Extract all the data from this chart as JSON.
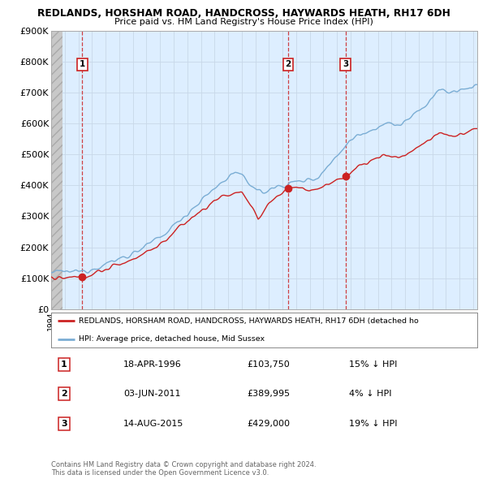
{
  "title": "REDLANDS, HORSHAM ROAD, HANDCROSS, HAYWARDS HEATH, RH17 6DH",
  "subtitle": "Price paid vs. HM Land Registry's House Price Index (HPI)",
  "ylim": [
    0,
    900000
  ],
  "yticks": [
    0,
    100000,
    200000,
    300000,
    400000,
    500000,
    600000,
    700000,
    800000,
    900000
  ],
  "ytick_labels": [
    "£0",
    "£100K",
    "£200K",
    "£300K",
    "£400K",
    "£500K",
    "£600K",
    "£700K",
    "£800K",
    "£900K"
  ],
  "hpi_color": "#7aadd4",
  "price_color": "#cc2222",
  "grid_color": "#c8d8e8",
  "bg_color": "#ddeeff",
  "sale_points": [
    {
      "year": 1996.29,
      "price": 103750,
      "label": "1"
    },
    {
      "year": 2011.42,
      "price": 389995,
      "label": "2"
    },
    {
      "year": 2015.62,
      "price": 429000,
      "label": "3"
    }
  ],
  "xmin": 1994,
  "xmax": 2025.3,
  "legend_line1": "REDLANDS, HORSHAM ROAD, HANDCROSS, HAYWARDS HEATH, RH17 6DH (detached ho",
  "legend_line2": "HPI: Average price, detached house, Mid Sussex",
  "table_rows": [
    {
      "num": "1",
      "date": "18-APR-1996",
      "price": "£103,750",
      "pct": "15% ↓ HPI"
    },
    {
      "num": "2",
      "date": "03-JUN-2011",
      "price": "£389,995",
      "pct": "4% ↓ HPI"
    },
    {
      "num": "3",
      "date": "14-AUG-2015",
      "price": "£429,000",
      "pct": "19% ↓ HPI"
    }
  ],
  "footnote": "Contains HM Land Registry data © Crown copyright and database right 2024.\nThis data is licensed under the Open Government Licence v3.0."
}
